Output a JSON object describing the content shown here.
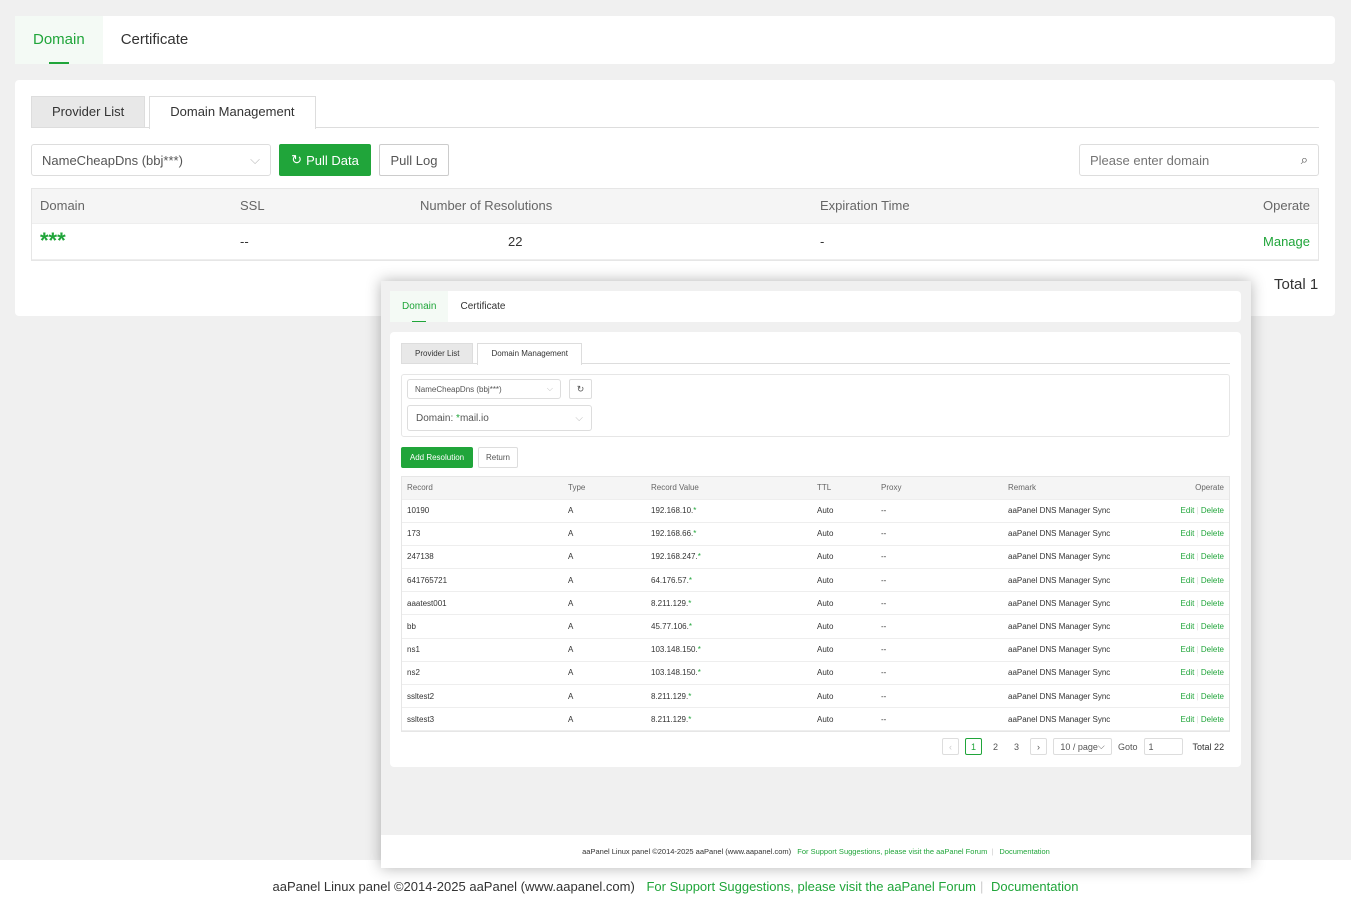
{
  "top_tabs": [
    "Domain",
    "Certificate"
  ],
  "sub_tabs": [
    "Provider List",
    "Domain Management"
  ],
  "provider_select": "NameCheapDns (bbj***)",
  "pull_data": "Pull Data",
  "pull_log": "Pull Log",
  "search_placeholder": "Please enter domain",
  "main_table": {
    "headers": [
      "Domain",
      "SSL",
      "Number of Resolutions",
      "Expiration Time",
      "Operate"
    ],
    "row": {
      "domain": "***",
      "ssl": "--",
      "resolutions": "22",
      "expiration": "-",
      "operate": "Manage"
    }
  },
  "main_total": "Total 1",
  "modal": {
    "top_tabs": [
      "Domain",
      "Certificate"
    ],
    "sub_tabs": [
      "Provider List",
      "Domain Management"
    ],
    "provider_select": "NameCheapDns (bbj***)",
    "domain_label": "Domain:",
    "domain_value": "mail.io",
    "add_resolution": "Add Resolution",
    "return": "Return",
    "headers": [
      "Record",
      "Type",
      "Record Value",
      "TTL",
      "Proxy",
      "Remark",
      "Operate"
    ],
    "rows": [
      {
        "record": "10190",
        "type": "A",
        "value": "192.168.10.",
        "ttl": "Auto",
        "proxy": "--",
        "remark": "aaPanel DNS Manager Sync"
      },
      {
        "record": "173",
        "type": "A",
        "value": "192.168.66.",
        "ttl": "Auto",
        "proxy": "--",
        "remark": "aaPanel DNS Manager Sync"
      },
      {
        "record": "247138",
        "type": "A",
        "value": "192.168.247.",
        "ttl": "Auto",
        "proxy": "--",
        "remark": "aaPanel DNS Manager Sync"
      },
      {
        "record": "641765721",
        "type": "A",
        "value": "64.176.57.",
        "ttl": "Auto",
        "proxy": "--",
        "remark": "aaPanel DNS Manager Sync"
      },
      {
        "record": "aaatest001",
        "type": "A",
        "value": "8.211.129.",
        "ttl": "Auto",
        "proxy": "--",
        "remark": "aaPanel DNS Manager Sync"
      },
      {
        "record": "bb",
        "type": "A",
        "value": "45.77.106.",
        "ttl": "Auto",
        "proxy": "--",
        "remark": "aaPanel DNS Manager Sync"
      },
      {
        "record": "ns1",
        "type": "A",
        "value": "103.148.150.",
        "ttl": "Auto",
        "proxy": "--",
        "remark": "aaPanel DNS Manager Sync"
      },
      {
        "record": "ns2",
        "type": "A",
        "value": "103.148.150.",
        "ttl": "Auto",
        "proxy": "--",
        "remark": "aaPanel DNS Manager Sync"
      },
      {
        "record": "ssltest2",
        "type": "A",
        "value": "8.211.129.",
        "ttl": "Auto",
        "proxy": "--",
        "remark": "aaPanel DNS Manager Sync"
      },
      {
        "record": "ssltest3",
        "type": "A",
        "value": "8.211.129.",
        "ttl": "Auto",
        "proxy": "--",
        "remark": "aaPanel DNS Manager Sync"
      }
    ],
    "edit": "Edit",
    "delete": "Delete",
    "pages": [
      "1",
      "2",
      "3"
    ],
    "page_size": "10 / page",
    "goto_label": "Goto",
    "goto_value": "1",
    "total": "Total 22",
    "footer": {
      "copyright": "aaPanel Linux panel ©2014-2025 aaPanel (www.aapanel.com)",
      "forum": "For Support Suggestions, please visit the aaPanel Forum",
      "docs": "Documentation"
    }
  },
  "footer": {
    "copyright": "aaPanel Linux panel ©2014-2025 aaPanel (www.aapanel.com)",
    "forum": "For Support Suggestions, please visit the aaPanel Forum",
    "docs": "Documentation"
  },
  "accent": "#20a53a"
}
